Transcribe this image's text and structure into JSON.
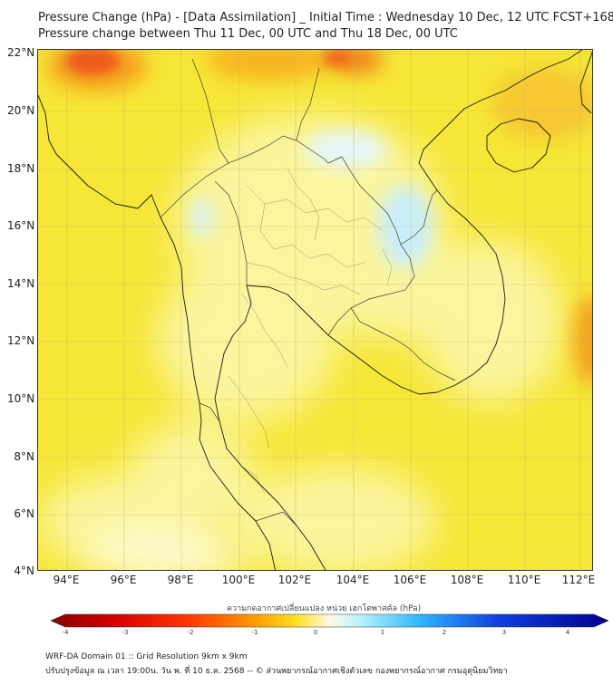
{
  "title": {
    "line1": "Pressure Change (hPa) - [Data Assimilation] _ Initial Time : Wednesday 10 Dec, 12 UTC FCST+168",
    "line2": "Pressure change between Thu 11 Dec, 00 UTC and Thu 18 Dec, 00 UTC"
  },
  "map": {
    "lat_labels": [
      "22°N",
      "20°N",
      "18°N",
      "16°N",
      "14°N",
      "12°N",
      "10°N",
      "8°N",
      "6°N",
      "4°N"
    ],
    "lon_labels": [
      "94°E",
      "96°E",
      "98°E",
      "100°E",
      "102°E",
      "104°E",
      "106°E",
      "108°E",
      "110°E",
      "112°E"
    ],
    "colors": {
      "base": "#f6e636",
      "light": "#fbf6a4",
      "orange": "#f6a21a",
      "red": "#ef4a1c",
      "ice": "#c9eefa"
    }
  },
  "colorbar": {
    "title": "ความกดอากาศเปลี่ยนแปลง หน่วย เฮกโตพาสคัล (hPa)",
    "ticks": [
      "-4",
      "-3",
      "-2",
      "-1",
      "0",
      "1",
      "2",
      "3",
      "4"
    ],
    "range": [
      -4,
      4
    ]
  },
  "footer": {
    "line1": "WRF-DA Domain 01 :: Grid Resolution 9km x 9km",
    "line2": "ปรับปรุงข้อมูล ณ เวลา 19:00น. วัน พ. ที่ 10 ธ.ค. 2568 -- © ส่วนพยากรณ์อากาศเชิงตัวเลข กองพยากรณ์อากาศ กรมอุตุนิยมวิทยา"
  }
}
